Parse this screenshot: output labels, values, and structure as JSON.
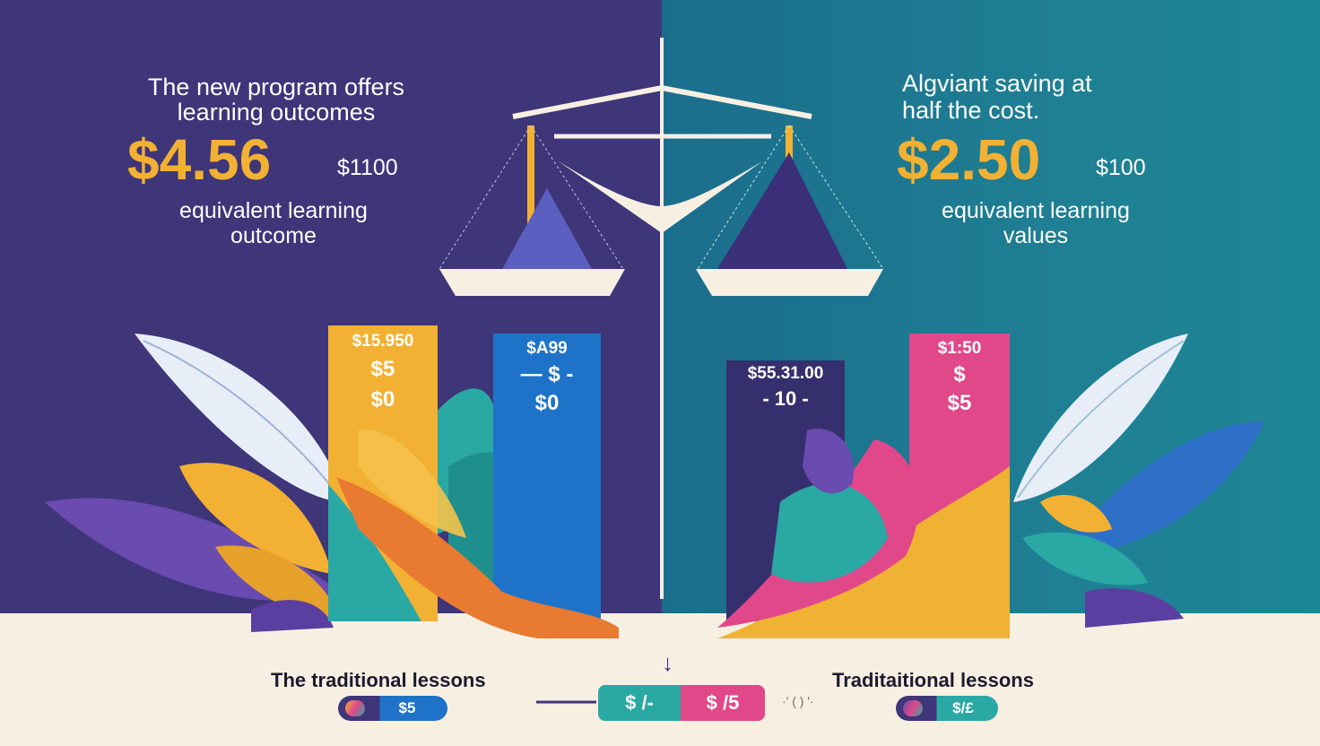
{
  "left": {
    "headline_line1": "The new program offers",
    "headline_line2": "learning outcomes",
    "big_price": "$4.56",
    "small_price": "$1100",
    "sub_line1": "equivalent learning",
    "sub_line2": "outcome",
    "bar_yellow": {
      "line1": "$15.950",
      "line2": "$5",
      "line3": "$0"
    },
    "bar_blue": {
      "line1": "$A99",
      "line2": "— $ -",
      "line3": "$0"
    },
    "caption": "The  traditional lessons",
    "pill_value": "$5"
  },
  "right": {
    "headline_line1": "Algviant saving at",
    "headline_line2": "half the cost.",
    "big_price": "$2.50",
    "small_price": "$100",
    "sub_line1": "equivalent learning",
    "sub_line2": "values",
    "bar_navy": {
      "line1": "$55.31.00",
      "line2": "- 10 -"
    },
    "bar_pink": {
      "line1": "$1:50",
      "line2": "$",
      "line3": "$5"
    },
    "caption": "Traditaitional lessons",
    "pill_value": "$/£"
  },
  "center": {
    "arrow": "↓",
    "pill_left": "$ /-",
    "pill_right": "$ /5",
    "side_mark": "·' ( ) '·"
  },
  "colors": {
    "left_bg": "#3f3579",
    "right_bg": "#1f7f94",
    "floor": "#f7f0e2",
    "accent_yellow": "#f2b132",
    "accent_blue": "#1e73c8",
    "accent_pink": "#e0488a",
    "accent_teal": "#2aa8a4",
    "navy": "#362f6e"
  }
}
